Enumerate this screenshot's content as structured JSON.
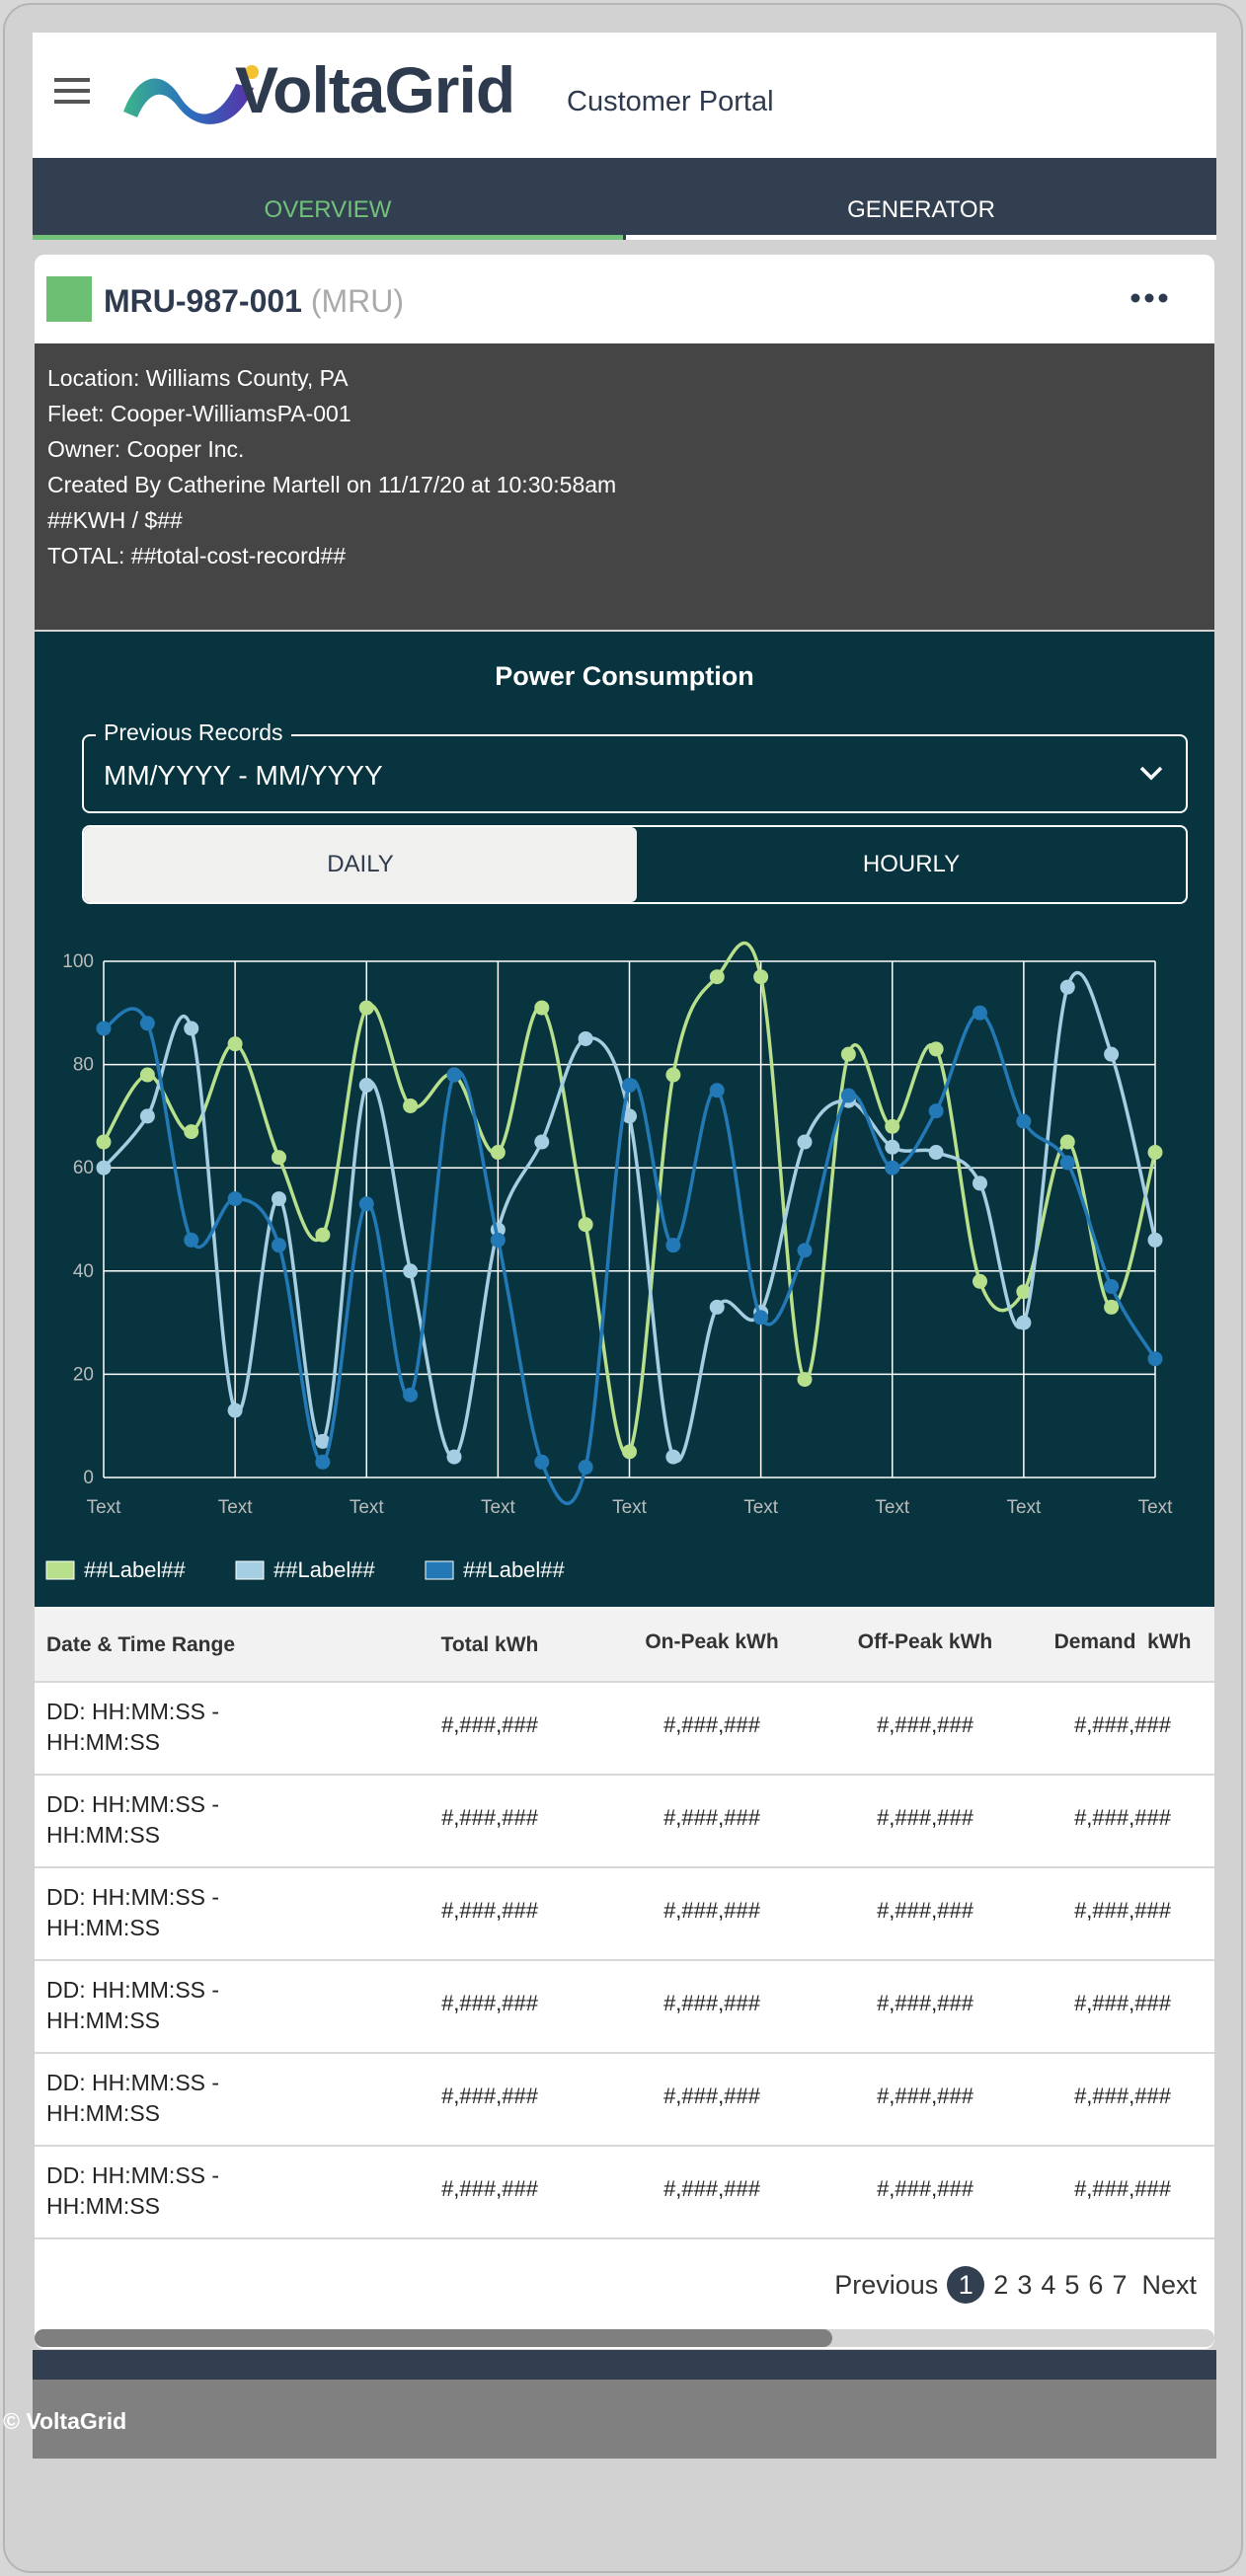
{
  "header": {
    "brand": "VoltaGrid",
    "subtitle": "Customer Portal"
  },
  "tabs": [
    "OVERVIEW",
    "GENERATOR"
  ],
  "card": {
    "title": "MRU-987-001",
    "tag": "(MRU)",
    "details": [
      "Location: Williams County, PA",
      "Fleet: Cooper-WilliamsPA-001",
      "Owner: Cooper Inc.",
      "Created By Catherine Martell on 11/17/20 at 10:30:58am",
      "##KWH / $##",
      "TOTAL: ##total-cost-record##"
    ]
  },
  "chart_data": {
    "type": "line",
    "title": "Power Consumption",
    "filter": {
      "label": "Previous Records",
      "value": "MM/YYYY - MM/YYYY"
    },
    "toggle": [
      "DAILY",
      "HOURLY"
    ],
    "categories": [
      "Text",
      null,
      null,
      "Text",
      null,
      null,
      "Text",
      null,
      null,
      "Text",
      null,
      null,
      "Text",
      null,
      null,
      "Text",
      null,
      null,
      "Text",
      null,
      null,
      "Text",
      null,
      null,
      "Text"
    ],
    "series": [
      {
        "name": "##Label##",
        "color": "#b8e08c",
        "values": [
          65,
          78,
          67,
          84,
          62,
          47,
          91,
          72,
          78,
          63,
          91,
          49,
          5,
          78,
          97,
          97,
          19,
          82,
          68,
          83,
          38,
          36,
          65,
          33,
          63
        ]
      },
      {
        "name": "##Label##",
        "color": "#a6cee3",
        "values": [
          60,
          70,
          87,
          13,
          54,
          7,
          76,
          40,
          4,
          48,
          65,
          85,
          70,
          4,
          33,
          32,
          65,
          73,
          64,
          63,
          57,
          30,
          95,
          82,
          46
        ]
      },
      {
        "name": "##Label##",
        "color": "#2279b5",
        "values": [
          87,
          88,
          46,
          54,
          45,
          3,
          53,
          16,
          78,
          46,
          3,
          2,
          76,
          45,
          75,
          31,
          44,
          74,
          60,
          71,
          90,
          69,
          61,
          37,
          23
        ]
      }
    ],
    "ylim": [
      0,
      100
    ],
    "yticks": [
      0,
      20,
      40,
      60,
      80,
      100
    ],
    "grid": true
  },
  "table": {
    "headers": [
      "Date & Time Range",
      "Total kWh",
      "On-Peak kWh",
      "Off-Peak kWh",
      "Demand  kWh"
    ],
    "rows": [
      [
        "DD: HH:MM:SS - HH:MM:SS",
        "#,###,###",
        "#,###,###",
        "#,###,###",
        "#,###,###"
      ],
      [
        "DD: HH:MM:SS - HH:MM:SS",
        "#,###,###",
        "#,###,###",
        "#,###,###",
        "#,###,###"
      ],
      [
        "DD: HH:MM:SS - HH:MM:SS",
        "#,###,###",
        "#,###,###",
        "#,###,###",
        "#,###,###"
      ],
      [
        "DD: HH:MM:SS - HH:MM:SS",
        "#,###,###",
        "#,###,###",
        "#,###,###",
        "#,###,###"
      ],
      [
        "DD: HH:MM:SS - HH:MM:SS",
        "#,###,###",
        "#,###,###",
        "#,###,###",
        "#,###,###"
      ],
      [
        "DD: HH:MM:SS - HH:MM:SS",
        "#,###,###",
        "#,###,###",
        "#,###,###",
        "#,###,###"
      ]
    ]
  },
  "pagination": {
    "previous": "Previous",
    "pages": [
      1,
      2,
      3,
      4,
      5,
      6,
      7
    ],
    "next": "Next",
    "current": 1
  },
  "footer": "© VoltaGrid"
}
